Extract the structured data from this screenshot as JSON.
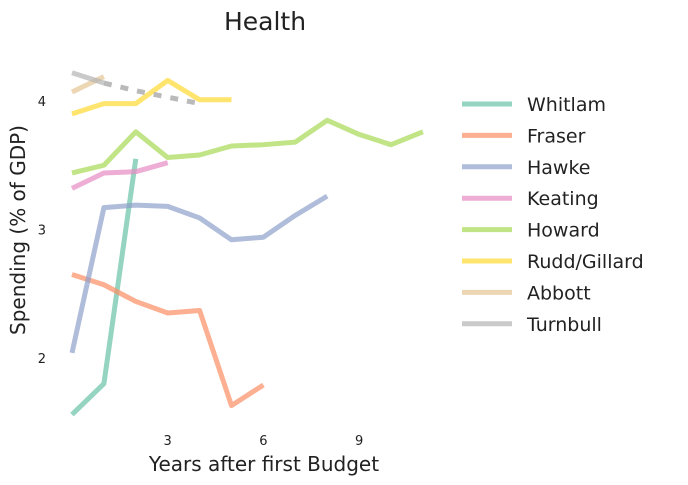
{
  "chart_data": {
    "type": "line",
    "title": "Health",
    "xlabel": "Years after first Budget",
    "ylabel": "Spending (% of GDP)",
    "xticks": [
      3,
      6,
      9
    ],
    "yticks": [
      2,
      3,
      4
    ],
    "xlim": [
      -0.3,
      11.3
    ],
    "ylim": [
      1.45,
      4.45
    ],
    "grid": false,
    "legend_position": "right",
    "series": [
      {
        "name": "Whitlam",
        "color": "#66c2a5",
        "x": [
          0,
          1,
          2
        ],
        "values": [
          1.56,
          1.8,
          3.55
        ]
      },
      {
        "name": "Fraser",
        "color": "#fc8d62",
        "x": [
          0,
          1,
          2,
          3,
          4,
          5,
          6
        ],
        "values": [
          2.65,
          2.57,
          2.44,
          2.35,
          2.37,
          1.63,
          1.79
        ]
      },
      {
        "name": "Hawke",
        "color": "#8da0cb",
        "x": [
          0,
          1,
          2,
          3,
          4,
          5,
          6,
          7,
          8
        ],
        "values": [
          2.04,
          3.17,
          3.19,
          3.18,
          3.09,
          2.92,
          2.94,
          3.11,
          3.26
        ]
      },
      {
        "name": "Keating",
        "color": "#e78ac3",
        "x": [
          0,
          1,
          2,
          3
        ],
        "values": [
          3.32,
          3.44,
          3.45,
          3.52
        ]
      },
      {
        "name": "Howard",
        "color": "#a6d854",
        "x": [
          0,
          1,
          2,
          3,
          4,
          5,
          6,
          7,
          8,
          9,
          10,
          11
        ],
        "values": [
          3.44,
          3.5,
          3.76,
          3.56,
          3.58,
          3.65,
          3.66,
          3.68,
          3.85,
          3.74,
          3.66,
          3.76
        ]
      },
      {
        "name": "Rudd/Gillard",
        "color": "#ffd92f",
        "x": [
          0,
          1,
          2,
          3,
          4,
          5
        ],
        "values": [
          3.9,
          3.98,
          3.98,
          4.16,
          4.01,
          4.01
        ]
      },
      {
        "name": "Abbott",
        "color": "#e5c494",
        "x": [
          0,
          1
        ],
        "values": [
          4.07,
          4.19
        ]
      },
      {
        "name": "Turnbull",
        "color": "#b3b3b3",
        "x": [
          0,
          1
        ],
        "values": [
          4.22,
          4.14
        ],
        "projection": {
          "x": [
            1,
            2,
            3,
            4
          ],
          "values": [
            4.14,
            4.08,
            4.03,
            3.98
          ],
          "style": "dashed"
        }
      }
    ]
  }
}
